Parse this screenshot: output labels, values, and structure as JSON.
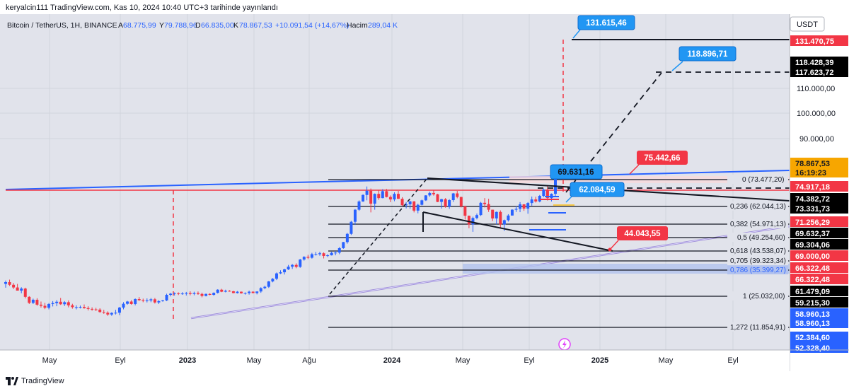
{
  "header": {
    "published": "keryalcin111 TradingView.com, Kas 10, 2024 10:40 UTC+3 tarihinde yayınlandı"
  },
  "legend": {
    "symbol": "Bitcoin / TetherUS, 1H, BINANCE",
    "o_label": "A",
    "o_value": "68.775,99",
    "h_label": "Y",
    "h_value": "79.788,96",
    "l_label": "D",
    "l_value": "66.835,00",
    "c_label": "K",
    "c_value": "78.867,53",
    "change": "+10.091,54 (+14,67%)",
    "vol_label": "Hacim",
    "vol_value": "289,04 K"
  },
  "currency": "USDT",
  "price_ticks": [
    "110.000,00",
    "100.000,00",
    "90.000,00"
  ],
  "price_tags": [
    {
      "text": "131.470,75",
      "bg": "#f23645",
      "fg": "#ffffff"
    },
    {
      "text": "118.428,39",
      "bg": "#000000",
      "fg": "#ffffff"
    },
    {
      "text": "117.623,72",
      "bg": "#000000",
      "fg": "#ffffff"
    },
    {
      "text": "78.867,53",
      "bg": "#f7a600",
      "fg": "#131722"
    },
    {
      "text": "16:19:23",
      "bg": "#f7a600",
      "fg": "#131722"
    },
    {
      "text": "74.917,18",
      "bg": "#f23645",
      "fg": "#ffffff"
    },
    {
      "text": "74.382,72",
      "bg": "#000000",
      "fg": "#ffffff"
    },
    {
      "text": "73.331,73",
      "bg": "#000000",
      "fg": "#ffffff"
    },
    {
      "text": "71.256,29",
      "bg": "#f23645",
      "fg": "#ffffff"
    },
    {
      "text": "69.632,37",
      "bg": "#000000",
      "fg": "#ffffff"
    },
    {
      "text": "69.304,06",
      "bg": "#000000",
      "fg": "#ffffff"
    },
    {
      "text": "69.000,00",
      "bg": "#f23645",
      "fg": "#ffffff"
    },
    {
      "text": "66.322,48",
      "bg": "#f23645",
      "fg": "#ffffff"
    },
    {
      "text": "66.322,48",
      "bg": "#f23645",
      "fg": "#ffffff"
    },
    {
      "text": "61.479,09",
      "bg": "#000000",
      "fg": "#ffffff"
    },
    {
      "text": "59.215,30",
      "bg": "#000000",
      "fg": "#ffffff"
    },
    {
      "text": "58.960,13",
      "bg": "#2962ff",
      "fg": "#ffffff"
    },
    {
      "text": "58.960,13",
      "bg": "#2962ff",
      "fg": "#ffffff"
    },
    {
      "text": "52.384,60",
      "bg": "#2962ff",
      "fg": "#ffffff"
    },
    {
      "text": "52.328,40",
      "bg": "#2962ff",
      "fg": "#ffffff"
    }
  ],
  "fib_levels": [
    {
      "label": "0 (73.477,20)"
    },
    {
      "label": "0,236 (62.044,13)"
    },
    {
      "label": "0,382 (54.971,13)"
    },
    {
      "label": "0,5 (49.254,60)"
    },
    {
      "label": "0,618 (43.538,07)"
    },
    {
      "label": "0,705 (39.323,34)"
    },
    {
      "label": "0,786 (35.399,27)"
    },
    {
      "label": "1 (25.032,00)"
    },
    {
      "label": "1,272 (11.854,91)"
    }
  ],
  "callouts": [
    {
      "text": "131.615,46",
      "bg": "#2196f3"
    },
    {
      "text": "118.896,71",
      "bg": "#2196f3"
    },
    {
      "text": "75.442,66",
      "bg": "#f23645"
    },
    {
      "text": "69.631,16",
      "bg": "#2196f3"
    },
    {
      "text": "62.084,59",
      "bg": "#2196f3"
    },
    {
      "text": "44.043,55",
      "bg": "#f23645"
    }
  ],
  "time_ticks": [
    "May",
    "Eyl",
    "2023",
    "May",
    "Ağu",
    "2024",
    "May",
    "Eyl",
    "2025",
    "May",
    "Eyl"
  ],
  "footer": {
    "brand": "TradingView"
  },
  "icons": {
    "logo": "tradingview-logo-icon",
    "event": "lightning-event-icon"
  },
  "colors": {
    "up": "#2962ff",
    "down": "#f23645",
    "pane_bg": "#e1e3eb",
    "trend": "#2962ff"
  },
  "candles": [
    [
      29.9,
      31.4,
      28.2,
      30.7
    ],
    [
      30.7,
      31.8,
      29.0,
      29.5
    ],
    [
      29.5,
      30.3,
      27.6,
      28.3
    ],
    [
      28.3,
      29.9,
      26.9,
      26.9
    ],
    [
      26.9,
      28.4,
      25.7,
      27.8
    ],
    [
      27.8,
      28.2,
      23.4,
      24.1
    ],
    [
      24.1,
      24.4,
      20.9,
      21.4
    ],
    [
      21.4,
      23.3,
      20.9,
      22.8
    ],
    [
      22.8,
      23.5,
      20.1,
      20.6
    ],
    [
      20.6,
      22.0,
      19.3,
      20.1
    ],
    [
      20.1,
      21.4,
      18.6,
      19.2
    ],
    [
      19.2,
      21.3,
      18.5,
      20.9
    ],
    [
      20.9,
      22.2,
      19.8,
      21.3
    ],
    [
      21.3,
      22.6,
      19.9,
      21.9
    ],
    [
      21.9,
      23.6,
      20.5,
      20.8
    ],
    [
      20.8,
      22.2,
      20.0,
      21.7
    ],
    [
      21.7,
      22.5,
      19.4,
      20.3
    ],
    [
      20.3,
      21.0,
      18.8,
      19.5
    ],
    [
      19.5,
      20.3,
      18.5,
      19.5
    ],
    [
      19.5,
      20.2,
      18.9,
      19.6
    ],
    [
      19.6,
      20.7,
      18.8,
      19.1
    ],
    [
      19.1,
      19.9,
      18.0,
      18.7
    ],
    [
      18.7,
      19.4,
      17.9,
      18.5
    ],
    [
      18.5,
      19.2,
      17.8,
      18.4
    ],
    [
      18.4,
      19.0,
      17.0,
      17.3
    ],
    [
      17.3,
      18.3,
      16.5,
      17.0
    ],
    [
      17.0,
      17.6,
      15.6,
      16.2
    ],
    [
      16.2,
      17.2,
      15.6,
      16.9
    ],
    [
      16.9,
      18.3,
      16.2,
      17.0
    ],
    [
      17.0,
      19.6,
      15.9,
      19.3
    ],
    [
      19.3,
      21.7,
      18.5,
      21.0
    ],
    [
      21.0,
      22.3,
      20.6,
      22.0
    ],
    [
      22.0,
      22.6,
      20.6,
      20.9
    ],
    [
      20.9,
      23.4,
      20.3,
      23.1
    ],
    [
      23.1,
      24.0,
      22.3,
      22.6
    ],
    [
      22.6,
      23.3,
      21.7,
      22.3
    ],
    [
      22.3,
      23.4,
      21.6,
      22.5
    ],
    [
      22.5,
      23.6,
      21.7,
      23.0
    ],
    [
      23.0,
      23.6,
      21.1,
      21.6
    ],
    [
      21.6,
      22.6,
      20.9,
      22.2
    ],
    [
      22.2,
      22.8,
      21.9,
      22.5
    ],
    [
      22.5,
      25.5,
      22.2,
      25.0
    ],
    [
      25.0,
      25.9,
      24.3,
      25.5
    ],
    [
      25.5,
      26.1,
      24.7,
      25.7
    ],
    [
      25.7,
      26.1,
      24.9,
      25.6
    ],
    [
      25.6,
      26.2,
      25.0,
      25.6
    ],
    [
      25.6,
      26.3,
      24.7,
      25.8
    ],
    [
      25.8,
      26.6,
      24.8,
      25.4
    ],
    [
      25.4,
      26.4,
      24.8,
      25.8
    ],
    [
      25.8,
      26.5,
      25.0,
      25.4
    ],
    [
      25.4,
      26.0,
      23.9,
      24.5
    ],
    [
      24.5,
      25.6,
      24.3,
      25.4
    ],
    [
      25.4,
      25.7,
      24.8,
      25.0
    ],
    [
      25.0,
      26.1,
      24.6,
      25.9
    ],
    [
      25.9,
      27.5,
      25.6,
      27.3
    ],
    [
      27.3,
      27.7,
      26.2,
      26.4
    ],
    [
      26.4,
      27.3,
      26.1,
      26.8
    ],
    [
      26.8,
      27.1,
      26.4,
      26.6
    ],
    [
      26.6,
      26.8,
      25.7,
      25.8
    ],
    [
      25.8,
      26.7,
      25.6,
      26.4
    ],
    [
      26.4,
      26.5,
      25.5,
      25.7
    ],
    [
      25.7,
      26.1,
      25.1,
      25.8
    ],
    [
      25.8,
      26.9,
      25.1,
      26.4
    ],
    [
      26.4,
      26.6,
      25.7,
      25.8
    ],
    [
      25.8,
      26.6,
      25.2,
      26.5
    ],
    [
      26.5,
      28.4,
      25.9,
      28.0
    ],
    [
      28.0,
      29.1,
      27.5,
      28.6
    ],
    [
      28.6,
      31.2,
      28.1,
      31.0
    ],
    [
      31.0,
      32.5,
      30.6,
      32.2
    ],
    [
      32.2,
      35.0,
      31.6,
      34.6
    ],
    [
      34.6,
      36.0,
      34.3,
      35.1
    ],
    [
      35.1,
      36.7,
      34.1,
      36.4
    ],
    [
      36.4,
      38.4,
      36.1,
      37.6
    ],
    [
      37.6,
      38.8,
      36.6,
      38.4
    ],
    [
      38.4,
      39.1,
      36.9,
      37.5
    ],
    [
      37.5,
      41.1,
      37.1,
      40.8
    ],
    [
      40.8,
      42.3,
      40.3,
      42.0
    ],
    [
      42.0,
      42.9,
      41.0,
      41.6
    ],
    [
      41.6,
      43.8,
      41.2,
      43.2
    ],
    [
      43.2,
      44.2,
      42.6,
      43.2
    ],
    [
      43.2,
      44.3,
      42.5,
      43.6
    ],
    [
      43.6,
      44.0,
      41.3,
      42.4
    ],
    [
      42.4,
      43.2,
      41.9,
      42.7
    ],
    [
      42.7,
      44.3,
      42.6,
      43.8
    ],
    [
      43.8,
      44.6,
      42.7,
      43.9
    ],
    [
      43.9,
      46.4,
      43.2,
      45.9
    ],
    [
      45.9,
      48.7,
      45.6,
      48.6
    ],
    [
      48.6,
      52.7,
      47.9,
      52.3
    ],
    [
      52.3,
      58.1,
      51.8,
      57.7
    ],
    [
      57.7,
      63.4,
      56.3,
      63.1
    ],
    [
      63.1,
      67.3,
      62.6,
      66.8
    ],
    [
      66.8,
      70.0,
      66.6,
      69.7
    ],
    [
      69.7,
      73.5,
      67.3,
      71.6
    ],
    [
      71.6,
      72.6,
      61.9,
      65.8
    ],
    [
      65.8,
      70.4,
      63.1,
      70.2
    ],
    [
      70.2,
      71.7,
      67.5,
      68.3
    ],
    [
      68.3,
      72.3,
      68.2,
      71.4
    ],
    [
      71.4,
      72.4,
      68.6,
      68.8
    ],
    [
      68.8,
      69.5,
      66.5,
      67.7
    ],
    [
      67.7,
      70.9,
      66.9,
      70.2
    ],
    [
      70.2,
      71.5,
      67.9,
      68.0
    ],
    [
      68.0,
      68.7,
      64.7,
      65.1
    ],
    [
      65.1,
      66.5,
      63.7,
      65.5
    ],
    [
      65.5,
      67.1,
      63.5,
      66.8
    ],
    [
      66.8,
      67.0,
      61.9,
      62.7
    ],
    [
      62.7,
      65.8,
      61.5,
      65.3
    ],
    [
      65.3,
      67.6,
      65.0,
      67.3
    ],
    [
      67.3,
      69.6,
      67.0,
      69.5
    ],
    [
      69.5,
      71.2,
      68.9,
      70.6
    ],
    [
      70.6,
      71.8,
      69.4,
      70.0
    ],
    [
      70.0,
      70.2,
      66.5,
      66.6
    ],
    [
      66.6,
      68.0,
      63.6,
      67.8
    ],
    [
      67.8,
      68.3,
      64.0,
      64.5
    ],
    [
      64.5,
      67.8,
      63.5,
      67.4
    ],
    [
      67.4,
      70.6,
      66.6,
      70.4
    ],
    [
      70.4,
      71.5,
      68.2,
      68.8
    ],
    [
      68.8,
      68.9,
      64.1,
      64.6
    ],
    [
      64.6,
      64.9,
      58.7,
      60.4
    ],
    [
      60.4,
      60.5,
      54.8,
      56.5
    ],
    [
      56.5,
      60.0,
      53.2,
      59.4
    ],
    [
      59.4,
      61.4,
      58.8,
      60.7
    ],
    [
      60.7,
      66.6,
      60.3,
      66.2
    ],
    [
      66.2,
      68.3,
      64.1,
      65.6
    ],
    [
      65.6,
      68.0,
      62.1,
      63.1
    ],
    [
      63.1,
      63.1,
      58.0,
      59.2
    ],
    [
      59.2,
      62.3,
      56.6,
      62.1
    ],
    [
      62.1,
      62.8,
      55.1,
      56.5
    ],
    [
      56.5,
      58.7,
      53.6,
      58.4
    ],
    [
      58.4,
      61.1,
      57.8,
      60.5
    ],
    [
      60.5,
      63.3,
      60.5,
      63.1
    ],
    [
      63.1,
      64.8,
      62.1,
      63.5
    ],
    [
      63.5,
      66.5,
      62.0,
      65.5
    ],
    [
      65.5,
      65.6,
      62.6,
      63.6
    ],
    [
      63.6,
      66.5,
      61.3,
      66.1
    ],
    [
      66.1,
      69.0,
      64.9,
      67.7
    ],
    [
      67.7,
      68.9,
      66.3,
      66.8
    ],
    [
      66.8,
      69.7,
      66.4,
      69.3
    ],
    [
      69.3,
      72.6,
      68.7,
      72.1
    ],
    [
      72.1,
      73.6,
      67.2,
      68.3
    ],
    [
      68.3,
      70.4,
      66.8,
      70.2
    ],
    [
      70.2,
      79.8,
      69.0,
      78.9
    ]
  ]
}
